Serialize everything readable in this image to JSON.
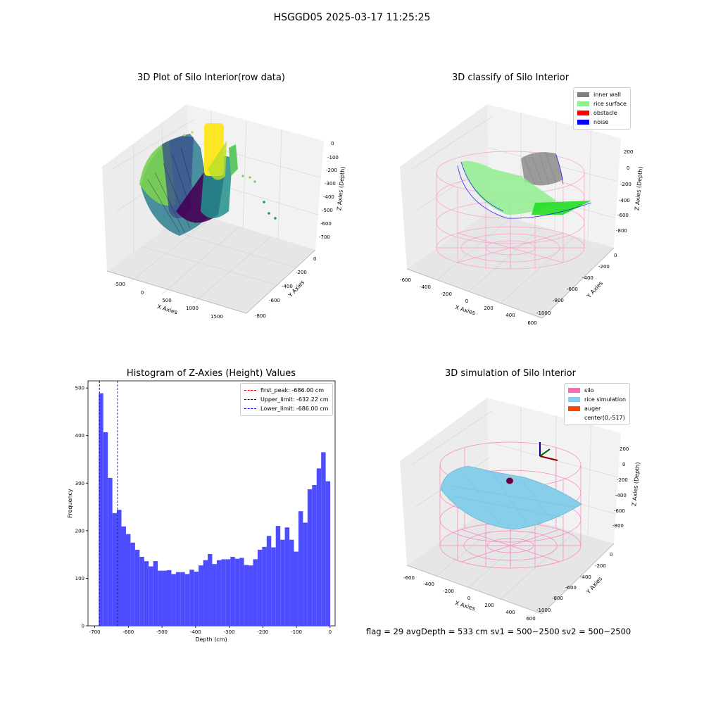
{
  "figure": {
    "suptitle": "HSGGD05 2025-03-17 11:25:25",
    "status_text": "flag = 29  avgDepth = 533 cm  sv1 = 500~2500  sv2 = 500~2500"
  },
  "panels": {
    "raw": {
      "title": "3D Plot of Silo Interior(row data)",
      "xlabel": "X Axies",
      "ylabel": "Y Axies",
      "zlabel": "Z Axies (Depth)",
      "xticks": [
        "-500",
        "0",
        "500",
        "1000",
        "1500"
      ],
      "yticks": [
        "0",
        "-200",
        "-400",
        "-600",
        "-800"
      ],
      "zticks": [
        "0",
        "-100",
        "-200",
        "-300",
        "-400",
        "-500",
        "-600",
        "-700"
      ]
    },
    "classify": {
      "title": "3D classify of Silo Interior",
      "xlabel": "X Axies",
      "ylabel": "Y Axies",
      "zlabel": "Z Axies (Depth)",
      "xticks": [
        "-600",
        "-400",
        "-200",
        "0",
        "200",
        "400",
        "600"
      ],
      "yticks": [
        "0",
        "-200",
        "-400",
        "-600",
        "-800",
        "-1000"
      ],
      "zticks": [
        "200",
        "0",
        "-200",
        "-400",
        "-600",
        "-800"
      ],
      "legend": [
        {
          "label": "inner wall",
          "color": "#808080"
        },
        {
          "label": "rice surface",
          "color": "#90ee90"
        },
        {
          "label": "obstacle",
          "color": "#ff0000"
        },
        {
          "label": "noise",
          "color": "#0000ff"
        }
      ]
    },
    "histogram": {
      "title": "Histogram of Z-Axies (Height) Values",
      "legend": [
        {
          "label": "first_peak: -686.00 cm",
          "color": "#ff0000"
        },
        {
          "label": "Upper_limit: -632.22 cm",
          "color": "#00008b"
        },
        {
          "label": "Lower_limit: -686.00 cm",
          "color": "#0000ff"
        }
      ]
    },
    "simulation": {
      "title": "3D simulation of Silo Interior",
      "xlabel": "X Axies",
      "ylabel": "Y Axies",
      "zlabel": "Z Axies (Depth)",
      "xticks": [
        "-600",
        "-400",
        "-200",
        "0",
        "200",
        "400",
        "600"
      ],
      "yticks": [
        "0",
        "-200",
        "-400",
        "-600",
        "-800",
        "-1000"
      ],
      "zticks": [
        "200",
        "0",
        "-200",
        "-400",
        "-600",
        "-800"
      ],
      "legend": [
        {
          "label": "silo",
          "color": "#ff69b4"
        },
        {
          "label": "rice simulation",
          "color": "#87ceeb"
        },
        {
          "label": "auger",
          "color": "#ff4500"
        },
        {
          "label": "center(0,-517)",
          "color": ""
        }
      ]
    }
  },
  "chart_data": {
    "type": "bar",
    "title": "Histogram of Z-Axies (Height) Values",
    "xlabel": "Depth (cm)",
    "ylabel": "Frequency",
    "xlim": [
      -720,
      15
    ],
    "ylim": [
      0,
      515
    ],
    "xticks": [
      -700,
      -600,
      -500,
      -400,
      -300,
      -200,
      -100,
      0
    ],
    "yticks": [
      0,
      100,
      200,
      300,
      400,
      500
    ],
    "bin_start": -688,
    "bin_width": 13.5,
    "bar_color": "#4d4dff",
    "values": [
      489,
      407,
      311,
      237,
      244,
      209,
      193,
      175,
      160,
      145,
      136,
      125,
      136,
      116,
      116,
      117,
      109,
      113,
      113,
      109,
      118,
      114,
      127,
      138,
      151,
      130,
      138,
      140,
      140,
      145,
      141,
      143,
      128,
      127,
      140,
      160,
      166,
      189,
      165,
      210,
      181,
      207,
      181,
      156,
      241,
      217,
      287,
      296,
      331,
      365,
      304
    ],
    "vlines": [
      {
        "name": "first_peak: -686.00 cm",
        "x": -686.0,
        "color": "#ff0000"
      },
      {
        "name": "Upper_limit: -632.22 cm",
        "x": -632.22,
        "color": "#00008b"
      },
      {
        "name": "Lower_limit: -686.00 cm",
        "x": -686.0,
        "color": "#0000ff"
      }
    ],
    "grid": false,
    "legend_position": "upper right"
  }
}
